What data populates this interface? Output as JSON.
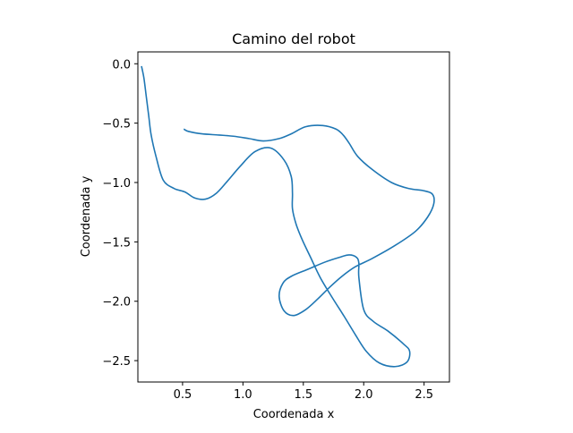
{
  "chart_data": {
    "type": "line",
    "title": "Camino del robot",
    "xlabel": "Coordenada x",
    "ylabel": "Coordenada y",
    "xlim": [
      0.13,
      2.71
    ],
    "ylim": [
      -2.68,
      0.1
    ],
    "xticks": [
      0.5,
      1.0,
      1.5,
      2.0,
      2.5
    ],
    "yticks": [
      0.0,
      -0.5,
      -1.0,
      -1.5,
      -2.0,
      -2.5
    ],
    "xtick_labels": [
      "0.5",
      "1.0",
      "1.5",
      "2.0",
      "2.5"
    ],
    "ytick_labels": [
      "0.0",
      "−0.5",
      "−1.0",
      "−1.5",
      "−2.0",
      "−2.5"
    ],
    "grid": false,
    "series": [
      {
        "color": "#1f77b4",
        "x": [
          0.51,
          0.55,
          0.66,
          0.8,
          0.92,
          1.05,
          1.17,
          1.3,
          1.4,
          1.52,
          1.66,
          1.77,
          1.83,
          1.88,
          1.95,
          2.07,
          2.23,
          2.37,
          2.5,
          2.57,
          2.58,
          2.53,
          2.43,
          2.26,
          2.07,
          1.93,
          1.82,
          1.72,
          1.62,
          1.52,
          1.42,
          1.34,
          1.3,
          1.33,
          1.4,
          1.54,
          1.68,
          1.8,
          1.88,
          1.94,
          1.96,
          1.96,
          2.0,
          2.08,
          2.2,
          2.33,
          2.38,
          2.36,
          2.26,
          2.13,
          2.02,
          1.93,
          1.84,
          1.74,
          1.64,
          1.56,
          1.49,
          1.44,
          1.41,
          1.41,
          1.4,
          1.34,
          1.23,
          1.1,
          0.98,
          0.87,
          0.78,
          0.69,
          0.6,
          0.52,
          0.43,
          0.34,
          0.28,
          0.24,
          0.22,
          0.2,
          0.18,
          0.16
        ],
        "y": [
          -0.55,
          -0.57,
          -0.59,
          -0.6,
          -0.61,
          -0.63,
          -0.65,
          -0.63,
          -0.59,
          -0.53,
          -0.52,
          -0.55,
          -0.6,
          -0.67,
          -0.78,
          -0.89,
          -1.0,
          -1.05,
          -1.07,
          -1.1,
          -1.18,
          -1.29,
          -1.41,
          -1.53,
          -1.64,
          -1.71,
          -1.79,
          -1.88,
          -1.98,
          -2.07,
          -2.12,
          -2.08,
          -1.96,
          -1.85,
          -1.79,
          -1.73,
          -1.67,
          -1.63,
          -1.61,
          -1.63,
          -1.68,
          -1.8,
          -2.07,
          -2.17,
          -2.25,
          -2.36,
          -2.42,
          -2.51,
          -2.55,
          -2.52,
          -2.42,
          -2.28,
          -2.13,
          -1.97,
          -1.8,
          -1.63,
          -1.48,
          -1.35,
          -1.22,
          -1.09,
          -0.95,
          -0.81,
          -0.71,
          -0.74,
          -0.86,
          -0.99,
          -1.09,
          -1.14,
          -1.13,
          -1.08,
          -1.05,
          -0.98,
          -0.78,
          -0.6,
          -0.44,
          -0.28,
          -0.12,
          -0.02
        ]
      }
    ]
  }
}
